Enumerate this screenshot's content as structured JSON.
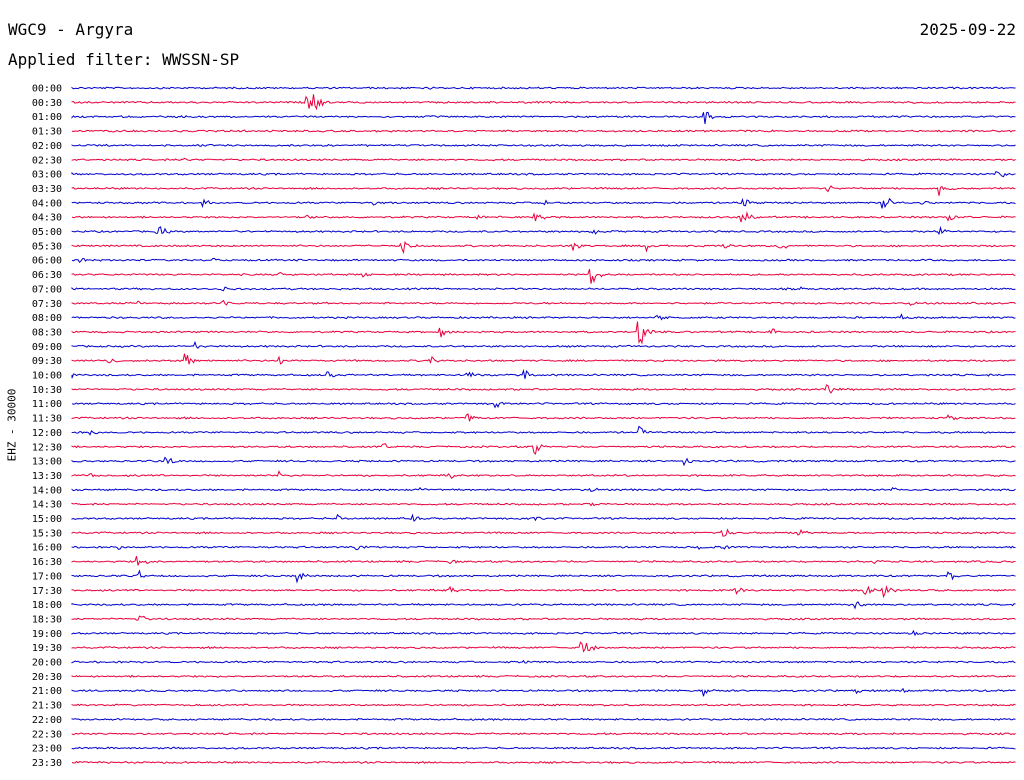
{
  "header": {
    "station": "WGC9 - Argyra",
    "date": "2025-09-22",
    "filter": "Applied filter: WWSSN-SP",
    "channel": "EHZ - 30000"
  },
  "colors": {
    "even": "#0000cc",
    "odd": "#e8003c"
  },
  "chart_data": {
    "type": "line",
    "title": "WGC9 - Argyra",
    "ylabel": "EHZ - 30000",
    "categories": [
      "00:00",
      "00:30",
      "01:00",
      "01:30",
      "02:00",
      "02:30",
      "03:00",
      "03:30",
      "04:00",
      "04:30",
      "05:00",
      "05:30",
      "06:00",
      "06:30",
      "07:00",
      "07:30",
      "08:00",
      "08:30",
      "09:00",
      "09:30",
      "10:00",
      "10:30",
      "11:00",
      "11:30",
      "12:00",
      "12:30",
      "13:00",
      "13:30",
      "14:00",
      "14:30",
      "15:00",
      "15:30",
      "16:00",
      "16:30",
      "17:00",
      "17:30",
      "18:00",
      "18:30",
      "19:00",
      "19:30",
      "20:00",
      "20:30",
      "21:00",
      "21:30",
      "22:00",
      "22:30",
      "23:00",
      "23:30"
    ],
    "events": [
      [
        [
          0.38,
          2
        ]
      ],
      [
        [
          0.25,
          28
        ]
      ],
      [
        [
          0.67,
          9
        ]
      ],
      [],
      [],
      [
        [
          0.12,
          3
        ]
      ],
      [
        [
          0.98,
          8
        ]
      ],
      [
        [
          0.8,
          6
        ],
        [
          0.92,
          10
        ]
      ],
      [
        [
          0.14,
          5
        ],
        [
          0.32,
          6
        ],
        [
          0.5,
          6
        ],
        [
          0.71,
          12
        ],
        [
          0.86,
          10
        ],
        [
          0.9,
          4
        ]
      ],
      [
        [
          0.25,
          4
        ],
        [
          0.43,
          5
        ],
        [
          0.49,
          8
        ],
        [
          0.71,
          10
        ],
        [
          0.93,
          6
        ]
      ],
      [
        [
          0.09,
          10
        ],
        [
          0.55,
          6
        ],
        [
          0.92,
          6
        ]
      ],
      [
        [
          0.35,
          10
        ],
        [
          0.53,
          8
        ],
        [
          0.61,
          8
        ],
        [
          0.69,
          5
        ],
        [
          0.75,
          6
        ]
      ],
      [
        [
          0.01,
          4
        ],
        [
          0.15,
          4
        ]
      ],
      [
        [
          0.22,
          3
        ],
        [
          0.31,
          4
        ],
        [
          0.55,
          14
        ]
      ],
      [
        [
          0.16,
          4
        ],
        [
          0.77,
          4
        ]
      ],
      [
        [
          0.07,
          3
        ],
        [
          0.16,
          4
        ],
        [
          0.89,
          3
        ]
      ],
      [
        [
          0.62,
          6
        ],
        [
          0.88,
          4
        ]
      ],
      [
        [
          0.39,
          8
        ],
        [
          0.6,
          22
        ],
        [
          0.74,
          6
        ]
      ],
      [
        [
          0.13,
          5
        ]
      ],
      [
        [
          0.04,
          5
        ],
        [
          0.12,
          10
        ],
        [
          0.22,
          6
        ],
        [
          0.38,
          6
        ]
      ],
      [
        [
          0.0,
          4
        ],
        [
          0.27,
          6
        ],
        [
          0.42,
          6
        ],
        [
          0.48,
          7
        ]
      ],
      [
        [
          0.8,
          10
        ]
      ],
      [
        [
          0.45,
          6
        ]
      ],
      [
        [
          0.42,
          5
        ],
        [
          0.93,
          6
        ]
      ],
      [
        [
          0.02,
          5
        ],
        [
          0.6,
          10
        ]
      ],
      [
        [
          0.33,
          5
        ],
        [
          0.49,
          12
        ]
      ],
      [
        [
          0.1,
          7
        ],
        [
          0.65,
          6
        ]
      ],
      [
        [
          0.02,
          4
        ],
        [
          0.22,
          5
        ],
        [
          0.4,
          4
        ]
      ],
      [
        [
          0.37,
          4
        ],
        [
          0.55,
          4
        ],
        [
          0.87,
          3
        ]
      ],
      [
        [
          0.55,
          3
        ]
      ],
      [
        [
          0.28,
          6
        ],
        [
          0.36,
          5
        ],
        [
          0.49,
          5
        ]
      ],
      [
        [
          0.69,
          8
        ],
        [
          0.77,
          6
        ]
      ],
      [
        [
          0.05,
          4
        ],
        [
          0.3,
          4
        ],
        [
          0.66,
          6
        ],
        [
          0.69,
          4
        ]
      ],
      [
        [
          0.07,
          8
        ],
        [
          0.4,
          4
        ],
        [
          0.85,
          5
        ]
      ],
      [
        [
          0.07,
          7
        ],
        [
          0.24,
          7
        ],
        [
          0.93,
          7
        ]
      ],
      [
        [
          0.4,
          7
        ],
        [
          0.7,
          10
        ],
        [
          0.84,
          8
        ],
        [
          0.86,
          10
        ]
      ],
      [
        [
          0.83,
          6
        ]
      ],
      [
        [
          0.07,
          7
        ]
      ],
      [
        [
          0.89,
          4
        ]
      ],
      [
        [
          0.54,
          16
        ]
      ],
      [
        [
          0.48,
          3
        ]
      ],
      [],
      [
        [
          0.67,
          6
        ],
        [
          0.83,
          3
        ],
        [
          0.88,
          3
        ]
      ],
      [],
      [],
      [],
      [],
      []
    ]
  }
}
